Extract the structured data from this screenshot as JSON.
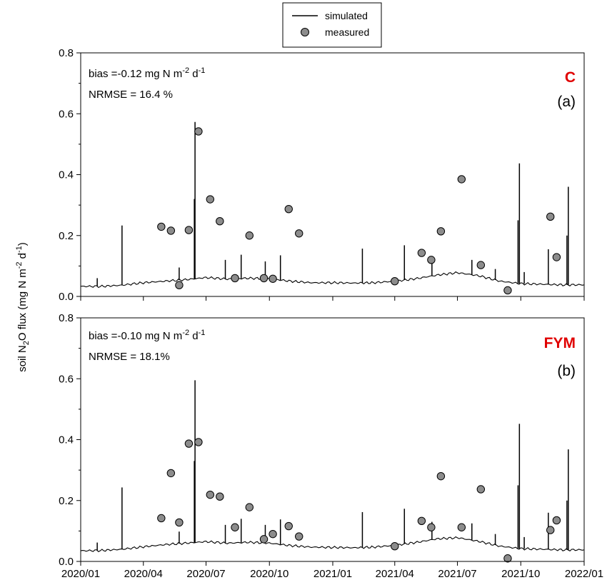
{
  "chart_data": {
    "type": "line",
    "ylabel": {
      "pre": "soil N",
      "sub": "2",
      "mid": "O flux (mg N m",
      "sup1": "-2",
      "mid2": " d",
      "sup2": "-1",
      "post": ")"
    },
    "x_ticks": [
      "2020/01",
      "2020/04",
      "2020/07",
      "2020/10",
      "2021/01",
      "2021/04",
      "2021/07",
      "2021/10",
      "2022/01"
    ],
    "y_ticks": [
      "0.0",
      "0.2",
      "0.4",
      "0.6",
      "0.8"
    ],
    "ylim": [
      0,
      0.8
    ],
    "xlim": [
      "2020-01-01",
      "2022-01-01"
    ],
    "legend": {
      "position": "top-center",
      "simulated": "simulated",
      "measured": "measured"
    },
    "colors": {
      "simulated": "#000000",
      "measured": "#8c8c8c",
      "title": "#e00000"
    },
    "panels": [
      {
        "title": "C",
        "letter": "(a)",
        "bias_text": {
          "pre": "bias =-0.12 mg N m",
          "sup1": "-2",
          "mid": " d",
          "sup2": "-1"
        },
        "nrmse_text": "NRMSE = 16.4 %",
        "baseline": [
          [
            "2020-01-01",
            0.033
          ],
          [
            "2020-02-01",
            0.033
          ],
          [
            "2020-03-01",
            0.037
          ],
          [
            "2020-04-01",
            0.045
          ],
          [
            "2020-05-01",
            0.05
          ],
          [
            "2020-06-01",
            0.055
          ],
          [
            "2020-07-01",
            0.062
          ],
          [
            "2020-08-01",
            0.057
          ],
          [
            "2020-09-01",
            0.06
          ],
          [
            "2020-10-01",
            0.058
          ],
          [
            "2020-11-01",
            0.05
          ],
          [
            "2020-12-01",
            0.045
          ],
          [
            "2021-01-01",
            0.045
          ],
          [
            "2021-02-01",
            0.044
          ],
          [
            "2021-03-01",
            0.045
          ],
          [
            "2021-04-01",
            0.05
          ],
          [
            "2021-05-01",
            0.058
          ],
          [
            "2021-06-01",
            0.07
          ],
          [
            "2021-07-01",
            0.078
          ],
          [
            "2021-08-01",
            0.068
          ],
          [
            "2021-09-01",
            0.05
          ],
          [
            "2021-10-01",
            0.042
          ],
          [
            "2021-11-01",
            0.04
          ],
          [
            "2021-12-01",
            0.038
          ],
          [
            "2022-01-01",
            0.038
          ]
        ],
        "spikes": [
          [
            "2020-01-25",
            0.06
          ],
          [
            "2020-03-01",
            0.233
          ],
          [
            "2020-05-23",
            0.095
          ],
          [
            "2020-06-15",
            0.573
          ],
          [
            "2020-06-14",
            0.32
          ],
          [
            "2020-07-29",
            0.12
          ],
          [
            "2020-08-21",
            0.137
          ],
          [
            "2020-09-25",
            0.115
          ],
          [
            "2020-10-17",
            0.135
          ],
          [
            "2021-02-13",
            0.157
          ],
          [
            "2021-04-15",
            0.168
          ],
          [
            "2021-05-25",
            0.13
          ],
          [
            "2021-07-22",
            0.12
          ],
          [
            "2021-08-25",
            0.09
          ],
          [
            "2021-09-29",
            0.437
          ],
          [
            "2021-09-27",
            0.25
          ],
          [
            "2021-10-06",
            0.08
          ],
          [
            "2021-11-10",
            0.155
          ],
          [
            "2021-12-09",
            0.36
          ],
          [
            "2021-12-07",
            0.2
          ]
        ],
        "measured": [
          [
            "2020-04-27",
            0.229
          ],
          [
            "2020-05-11",
            0.216
          ],
          [
            "2020-05-23",
            0.037
          ],
          [
            "2020-06-06",
            0.218
          ],
          [
            "2020-06-20",
            0.542
          ],
          [
            "2020-07-07",
            0.319
          ],
          [
            "2020-07-21",
            0.247
          ],
          [
            "2020-08-12",
            0.06
          ],
          [
            "2020-09-02",
            0.2
          ],
          [
            "2020-09-23",
            0.06
          ],
          [
            "2020-10-06",
            0.058
          ],
          [
            "2020-10-29",
            0.287
          ],
          [
            "2020-11-13",
            0.207
          ],
          [
            "2021-04-01",
            0.05
          ],
          [
            "2021-05-10",
            0.143
          ],
          [
            "2021-05-24",
            0.12
          ],
          [
            "2021-06-07",
            0.214
          ],
          [
            "2021-07-07",
            0.385
          ],
          [
            "2021-08-04",
            0.103
          ],
          [
            "2021-09-12",
            0.02
          ],
          [
            "2021-11-13",
            0.262
          ],
          [
            "2021-11-22",
            0.129
          ]
        ]
      },
      {
        "title": "FYM",
        "letter": "(b)",
        "bias_text": {
          "pre": "bias =-0.10 mg N m",
          "sup1": "-2",
          "mid": " d",
          "sup2": "-1"
        },
        "nrmse_text": "NRMSE = 18.1%",
        "baseline": [
          [
            "2020-01-01",
            0.035
          ],
          [
            "2020-02-01",
            0.036
          ],
          [
            "2020-03-01",
            0.04
          ],
          [
            "2020-04-01",
            0.048
          ],
          [
            "2020-05-01",
            0.055
          ],
          [
            "2020-06-01",
            0.06
          ],
          [
            "2020-07-01",
            0.065
          ],
          [
            "2020-08-01",
            0.06
          ],
          [
            "2020-09-01",
            0.063
          ],
          [
            "2020-10-01",
            0.06
          ],
          [
            "2020-11-01",
            0.052
          ],
          [
            "2020-12-01",
            0.047
          ],
          [
            "2021-01-01",
            0.046
          ],
          [
            "2021-02-01",
            0.045
          ],
          [
            "2021-03-01",
            0.047
          ],
          [
            "2021-04-01",
            0.053
          ],
          [
            "2021-05-01",
            0.062
          ],
          [
            "2021-06-01",
            0.074
          ],
          [
            "2021-07-01",
            0.078
          ],
          [
            "2021-08-01",
            0.066
          ],
          [
            "2021-09-01",
            0.05
          ],
          [
            "2021-10-01",
            0.042
          ],
          [
            "2021-11-01",
            0.04
          ],
          [
            "2021-12-01",
            0.038
          ],
          [
            "2022-01-01",
            0.038
          ]
        ],
        "spikes": [
          [
            "2020-01-25",
            0.062
          ],
          [
            "2020-03-01",
            0.243
          ],
          [
            "2020-05-23",
            0.098
          ],
          [
            "2020-06-15",
            0.595
          ],
          [
            "2020-06-14",
            0.33
          ],
          [
            "2020-07-29",
            0.12
          ],
          [
            "2020-08-21",
            0.14
          ],
          [
            "2020-09-25",
            0.12
          ],
          [
            "2020-10-17",
            0.138
          ],
          [
            "2021-02-13",
            0.162
          ],
          [
            "2021-04-15",
            0.173
          ],
          [
            "2021-05-25",
            0.13
          ],
          [
            "2021-07-22",
            0.125
          ],
          [
            "2021-08-25",
            0.09
          ],
          [
            "2021-09-29",
            0.452
          ],
          [
            "2021-09-27",
            0.25
          ],
          [
            "2021-10-06",
            0.08
          ],
          [
            "2021-11-10",
            0.16
          ],
          [
            "2021-12-09",
            0.368
          ],
          [
            "2021-12-07",
            0.2
          ]
        ],
        "measured": [
          [
            "2020-04-27",
            0.142
          ],
          [
            "2020-05-11",
            0.29
          ],
          [
            "2020-05-23",
            0.128
          ],
          [
            "2020-06-06",
            0.387
          ],
          [
            "2020-06-20",
            0.392
          ],
          [
            "2020-07-07",
            0.219
          ],
          [
            "2020-07-21",
            0.213
          ],
          [
            "2020-08-12",
            0.112
          ],
          [
            "2020-09-02",
            0.178
          ],
          [
            "2020-09-23",
            0.073
          ],
          [
            "2020-10-06",
            0.09
          ],
          [
            "2020-10-29",
            0.116
          ],
          [
            "2020-11-13",
            0.082
          ],
          [
            "2021-04-01",
            0.05
          ],
          [
            "2021-05-10",
            0.133
          ],
          [
            "2021-05-24",
            0.112
          ],
          [
            "2021-06-07",
            0.28
          ],
          [
            "2021-07-07",
            0.112
          ],
          [
            "2021-08-04",
            0.237
          ],
          [
            "2021-09-12",
            0.01
          ],
          [
            "2021-11-13",
            0.103
          ],
          [
            "2021-11-22",
            0.135
          ]
        ]
      }
    ]
  }
}
